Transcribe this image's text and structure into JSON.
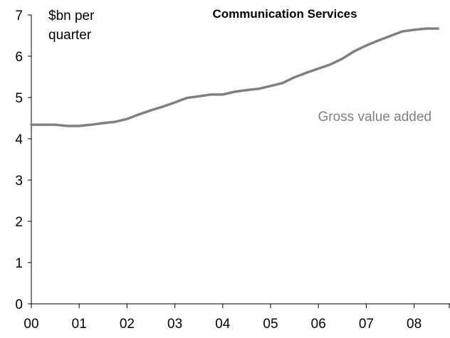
{
  "chart_data": {
    "type": "line",
    "title": "Communication Services",
    "ylabel_lines": [
      "$bn per",
      "quarter"
    ],
    "xlabel": "",
    "ylim": [
      0,
      7
    ],
    "xlim": [
      2000,
      2008.75
    ],
    "yticks": [
      0,
      1,
      2,
      3,
      4,
      5,
      6,
      7
    ],
    "ytick_labels": [
      "0",
      "1",
      "2",
      "3",
      "4",
      "5",
      "6",
      "7"
    ],
    "xticks": [
      2000,
      2001,
      2002,
      2003,
      2004,
      2005,
      2006,
      2007,
      2008
    ],
    "xtick_labels": [
      "00",
      "01",
      "02",
      "03",
      "04",
      "05",
      "06",
      "07",
      "08"
    ],
    "grid": false,
    "series": [
      {
        "name": "Gross value added",
        "color": "#808080",
        "x": [
          2000.0,
          2000.25,
          2000.5,
          2000.75,
          2001.0,
          2001.25,
          2001.5,
          2001.75,
          2002.0,
          2002.25,
          2002.5,
          2002.75,
          2003.0,
          2003.25,
          2003.5,
          2003.75,
          2004.0,
          2004.25,
          2004.5,
          2004.75,
          2005.0,
          2005.25,
          2005.5,
          2005.75,
          2006.0,
          2006.25,
          2006.5,
          2006.75,
          2007.0,
          2007.25,
          2007.5,
          2007.75,
          2008.0,
          2008.25,
          2008.5
        ],
        "values": [
          4.34,
          4.34,
          4.34,
          4.31,
          4.31,
          4.34,
          4.38,
          4.41,
          4.48,
          4.59,
          4.69,
          4.78,
          4.88,
          4.99,
          5.03,
          5.07,
          5.07,
          5.14,
          5.18,
          5.21,
          5.28,
          5.35,
          5.49,
          5.6,
          5.7,
          5.8,
          5.94,
          6.12,
          6.26,
          6.38,
          6.49,
          6.6,
          6.64,
          6.67,
          6.67
        ]
      }
    ]
  }
}
